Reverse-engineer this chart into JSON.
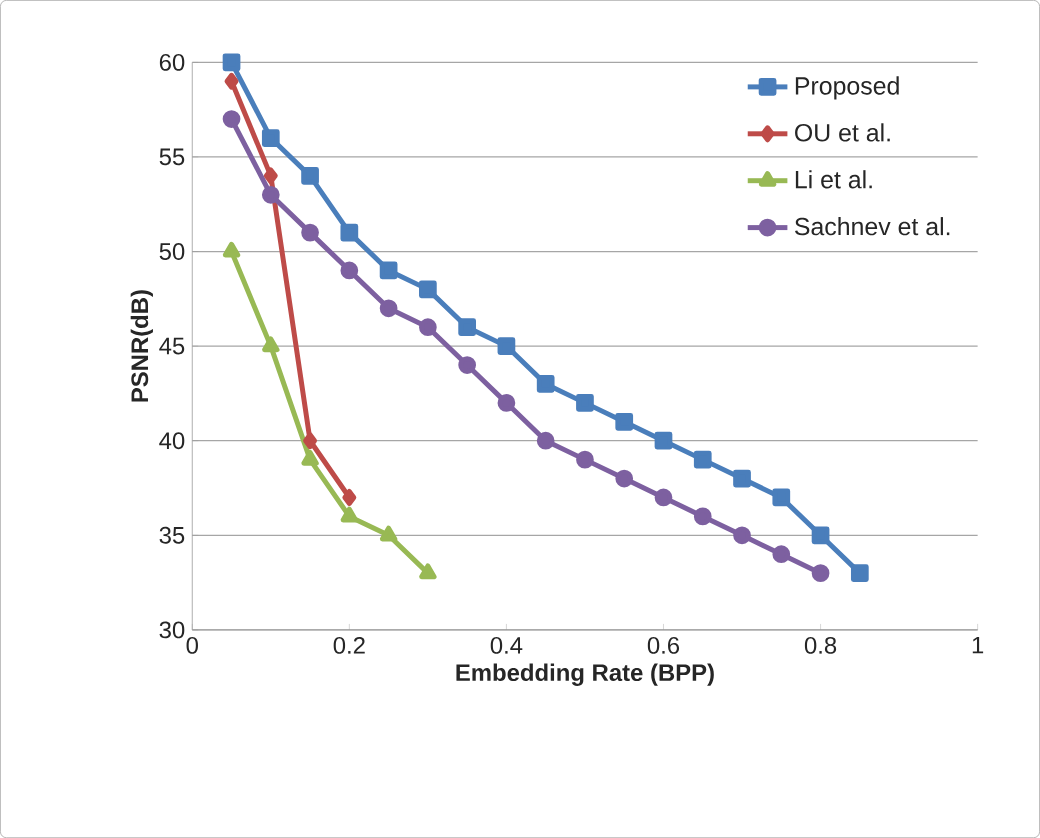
{
  "chart_data": {
    "type": "line",
    "xlabel": "Embedding Rate (BPP)",
    "ylabel": "PSNR(dB)",
    "xlim": [
      0,
      1
    ],
    "xticks": [
      0,
      0.2,
      0.4,
      0.6,
      0.8,
      1
    ],
    "ylim": [
      30,
      60
    ],
    "yticks": [
      30,
      35,
      40,
      45,
      50,
      55,
      60
    ],
    "grid": "y",
    "legend": "top right",
    "series": [
      {
        "name": "Proposed",
        "color": "#4a7ebb",
        "marker": "square",
        "x": [
          0.05,
          0.1,
          0.15,
          0.2,
          0.25,
          0.3,
          0.35,
          0.4,
          0.45,
          0.5,
          0.55,
          0.6,
          0.65,
          0.7,
          0.75,
          0.8,
          0.85
        ],
        "values": [
          60,
          56,
          54,
          51,
          49,
          48,
          46,
          45,
          43,
          42,
          41,
          40,
          39,
          38,
          37,
          35,
          33
        ]
      },
      {
        "name": "OU et al.",
        "color": "#be4b48",
        "marker": "diamond",
        "x": [
          0.05,
          0.1,
          0.15,
          0.2
        ],
        "values": [
          59,
          54,
          40,
          37
        ]
      },
      {
        "name": "Li et al.",
        "color": "#98b954",
        "marker": "triangle",
        "x": [
          0.05,
          0.1,
          0.15,
          0.2,
          0.25,
          0.3
        ],
        "values": [
          50,
          45,
          39,
          36,
          35,
          33
        ]
      },
      {
        "name": "Sachnev et al.",
        "color": "#7d60a0",
        "marker": "circle",
        "x": [
          0.05,
          0.1,
          0.15,
          0.2,
          0.25,
          0.3,
          0.35,
          0.4,
          0.45,
          0.5,
          0.55,
          0.6,
          0.65,
          0.7,
          0.75,
          0.8
        ],
        "values": [
          57,
          53,
          51,
          49,
          47,
          46,
          44,
          42,
          40,
          39,
          38,
          37,
          36,
          35,
          34,
          33
        ]
      }
    ]
  }
}
